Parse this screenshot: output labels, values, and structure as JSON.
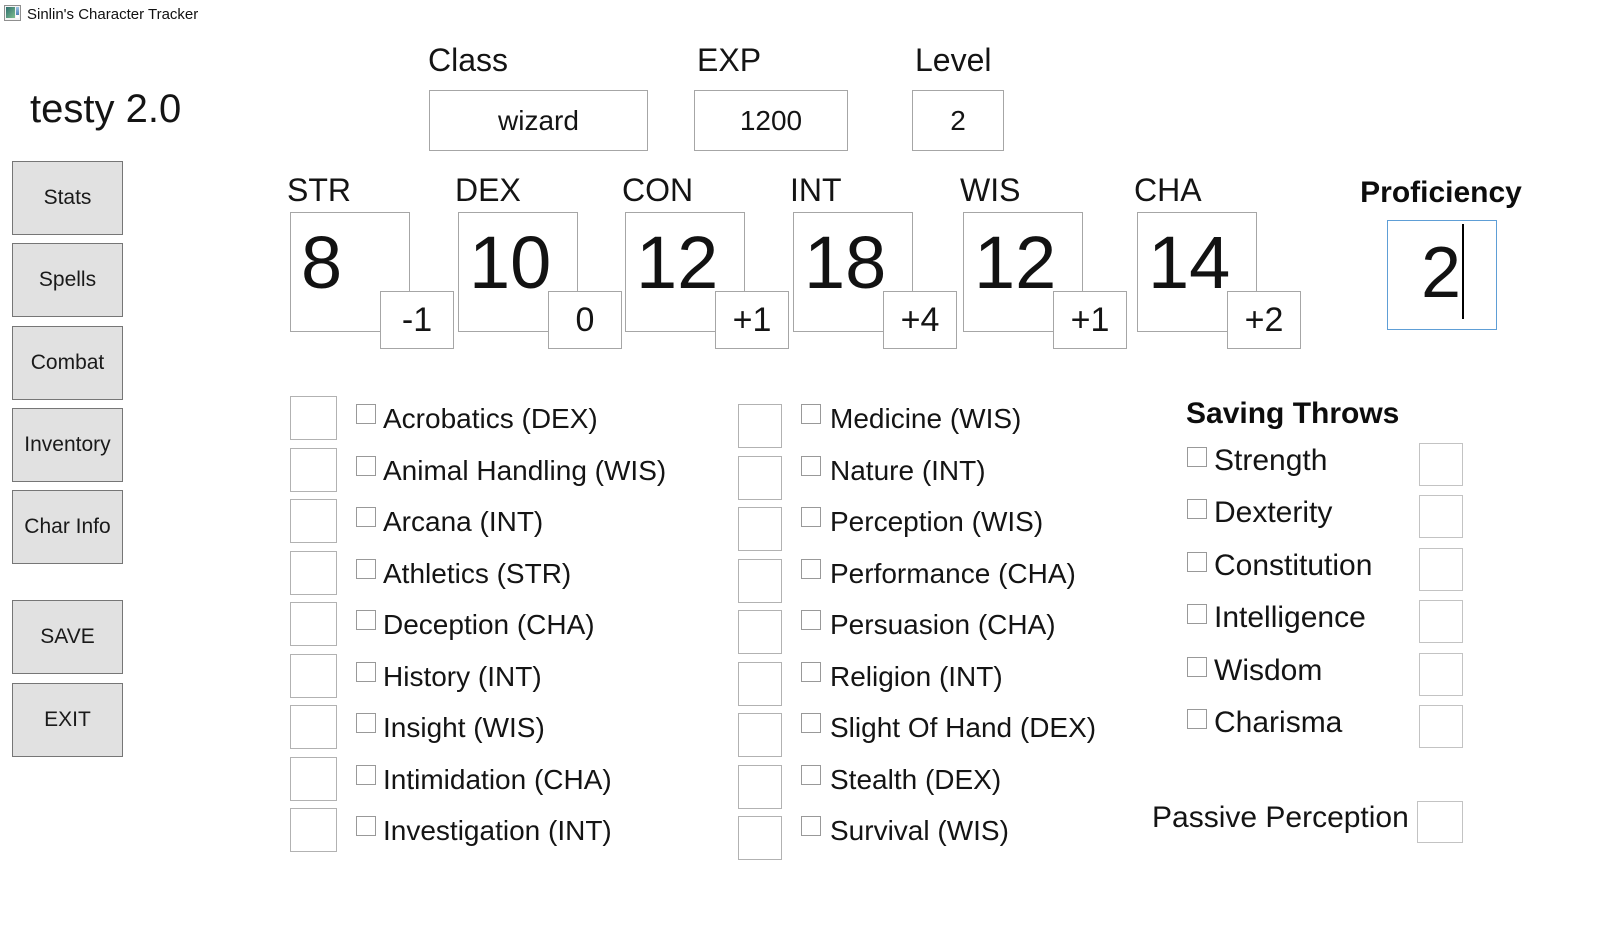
{
  "window": {
    "title": "Sinlin's Character Tracker"
  },
  "app": {
    "title": "testy 2.0"
  },
  "sidebar": {
    "nav": [
      {
        "label": "Stats"
      },
      {
        "label": "Spells"
      },
      {
        "label": "Combat"
      },
      {
        "label": "Inventory"
      },
      {
        "label": "Char Info"
      }
    ],
    "save_label": "SAVE",
    "exit_label": "EXIT"
  },
  "header_fields": {
    "class": {
      "label": "Class",
      "value": "wizard"
    },
    "exp": {
      "label": "EXP",
      "value": "1200"
    },
    "level": {
      "label": "Level",
      "value": "2"
    }
  },
  "abilities": [
    {
      "abbr": "STR",
      "score": "8",
      "modifier": "-1"
    },
    {
      "abbr": "DEX",
      "score": "10",
      "modifier": "0"
    },
    {
      "abbr": "CON",
      "score": "12",
      "modifier": "+1"
    },
    {
      "abbr": "INT",
      "score": "18",
      "modifier": "+4"
    },
    {
      "abbr": "WIS",
      "score": "12",
      "modifier": "+1"
    },
    {
      "abbr": "CHA",
      "score": "14",
      "modifier": "+2"
    }
  ],
  "proficiency": {
    "label": "Proficiency",
    "value": "2",
    "focused": true
  },
  "skills": {
    "column1": [
      "Acrobatics (DEX)",
      "Animal Handling (WIS)",
      "Arcana (INT)",
      "Athletics (STR)",
      "Deception (CHA)",
      "History (INT)",
      "Insight (WIS)",
      "Intimidation (CHA)",
      "Investigation (INT)"
    ],
    "column2": [
      "Medicine (WIS)",
      "Nature (INT)",
      "Perception (WIS)",
      "Performance (CHA)",
      "Persuasion (CHA)",
      "Religion (INT)",
      "Slight Of Hand (DEX)",
      "Stealth (DEX)",
      "Survival (WIS)"
    ],
    "values": [
      "",
      "",
      "",
      "",
      "",
      "",
      "",
      "",
      ""
    ],
    "checked": false
  },
  "saving_throws": {
    "title": "Saving Throws",
    "items": [
      "Strength",
      "Dexterity",
      "Constitution",
      "Intelligence",
      "Wisdom",
      "Charisma"
    ],
    "values": [
      "",
      "",
      "",
      "",
      "",
      ""
    ],
    "checked": false
  },
  "passive_perception": {
    "label": "Passive Perception",
    "value": ""
  },
  "colors": {
    "focus_border": "#5e9ed6",
    "button_bg": "#e1e1e1",
    "button_border": "#767676"
  }
}
